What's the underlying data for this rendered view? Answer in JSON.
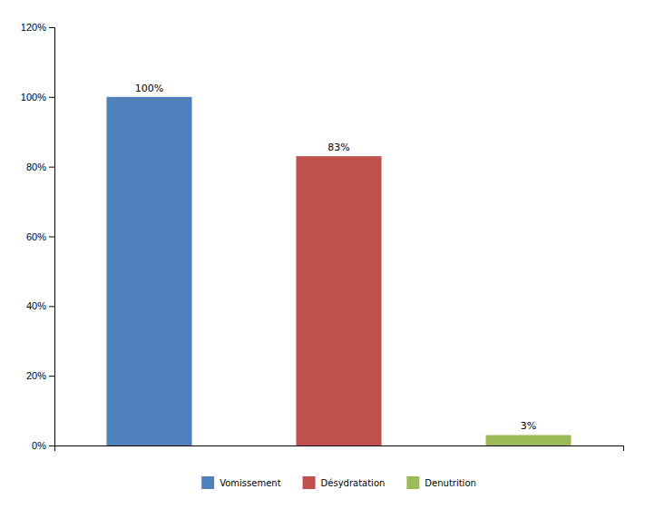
{
  "chart_data": {
    "type": "bar",
    "categories": [
      "Vomissement",
      "Désydratation",
      "Denutrition"
    ],
    "values": [
      100,
      83,
      3
    ],
    "value_labels": [
      "100%",
      "83%",
      "3%"
    ],
    "data_labels": true,
    "colors": [
      "#4F81BD",
      "#C0504D",
      "#9BBB59"
    ],
    "ylim": [
      0,
      120
    ],
    "yticks": [
      {
        "value": 0,
        "label": "0%"
      },
      {
        "value": 20,
        "label": "20%"
      },
      {
        "value": 40,
        "label": "40%"
      },
      {
        "value": 60,
        "label": "60%"
      },
      {
        "value": 80,
        "label": "80%"
      },
      {
        "value": 100,
        "label": "100%"
      },
      {
        "value": 120,
        "label": "120%"
      }
    ],
    "tick_labels": "y",
    "legend": "bottom",
    "grid": false
  }
}
